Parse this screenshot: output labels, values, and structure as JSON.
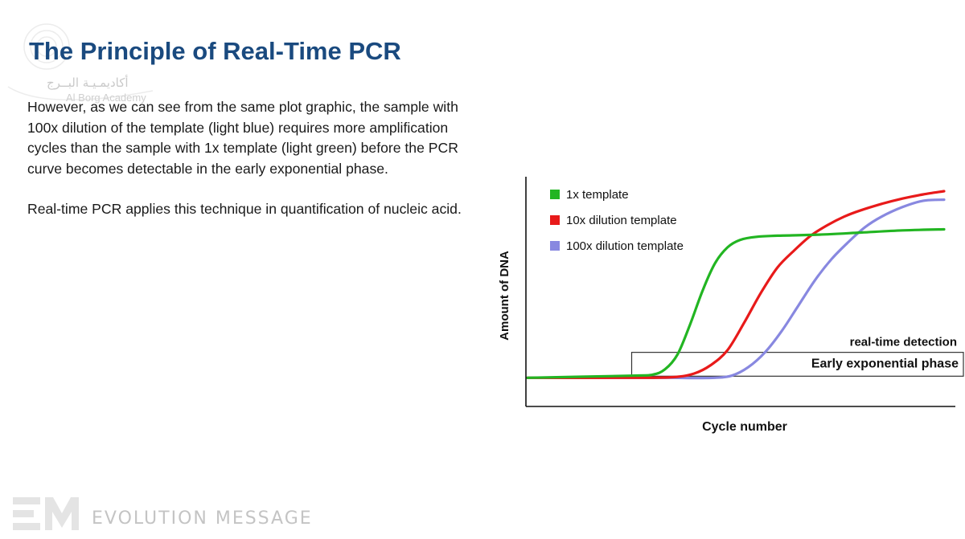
{
  "watermark": {
    "arabic": "أكاديمـيـة البــرج",
    "latin": "Al Borg Academy"
  },
  "slide": {
    "title": "The Principle of Real-Time PCR",
    "paragraph1": "However, as we can see from the same plot graphic, the sample with 100x dilution of the template (light blue) requires more amplification cycles than the sample with 1x template (light green) before the PCR curve becomes detectable in the early exponential phase.",
    "paragraph2": "Real-time PCR applies this technique in quantification of nucleic acid."
  },
  "chart_data": {
    "type": "line",
    "title": "",
    "xlabel": "Cycle number",
    "ylabel": "Amount of DNA",
    "x_ticks": false,
    "y_ticks": false,
    "legend_position": "top-left",
    "xlim": [
      0,
      100
    ],
    "ylim": [
      0,
      100
    ],
    "series": [
      {
        "name": "1x template",
        "color": "#22b522",
        "x": [
          0,
          25,
          30,
          33,
          36,
          39,
          42,
          45,
          48,
          51,
          55,
          60,
          70,
          80,
          90,
          100
        ],
        "y": [
          12,
          13,
          13.5,
          16,
          23,
          37,
          53,
          66,
          73.5,
          77,
          78.5,
          79,
          79.5,
          80.5,
          81.5,
          82
        ]
      },
      {
        "name": "10x dilution template",
        "color": "#e81a1a",
        "x": [
          0,
          25,
          35,
          40,
          44,
          48,
          52,
          56,
          60,
          64,
          68,
          72,
          76,
          80,
          85,
          90,
          95,
          100
        ],
        "y": [
          12,
          12,
          12.3,
          14,
          18,
          25,
          38,
          52,
          64,
          72,
          79,
          84,
          88,
          91,
          94,
          96.5,
          98.5,
          100
        ]
      },
      {
        "name": "100x dilution template",
        "color": "#8888e0",
        "x": [
          0,
          25,
          35,
          40,
          45,
          49,
          53,
          57,
          61,
          65,
          69,
          73,
          77,
          81,
          85,
          90,
          95,
          100
        ],
        "y": [
          12,
          12,
          12,
          11.9,
          12,
          13,
          17,
          24,
          34,
          46,
          58,
          68,
          76,
          83,
          88,
          92.5,
          95.5,
          96
        ]
      }
    ],
    "annotations": {
      "box_label_above": "real-time detection",
      "box_label_inside": "Early exponential phase",
      "box_x_range": [
        25,
        100
      ],
      "box_y_range": [
        12,
        24
      ]
    }
  },
  "footer": {
    "logo_mark": "EM",
    "brand": "EVOLUTION MESSAGE"
  }
}
